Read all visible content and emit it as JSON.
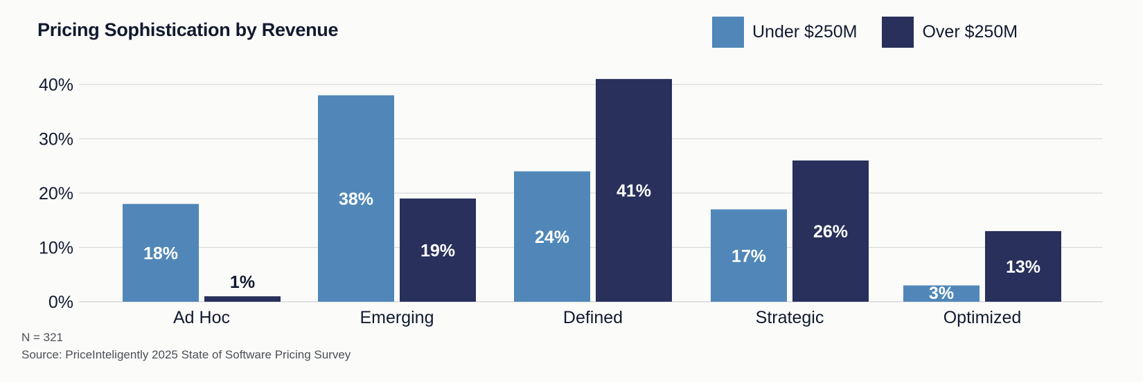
{
  "colors": {
    "under": "#5087b8",
    "over": "#28305b",
    "grid": "#d9dadb",
    "text": "#111a2e",
    "background": "#fbfbfa"
  },
  "chart_data": {
    "type": "bar",
    "title": "Pricing Sophistication by Revenue",
    "categories": [
      "Ad Hoc",
      "Emerging",
      "Defined",
      "Strategic",
      "Optimized"
    ],
    "series": [
      {
        "name": "Under $250M",
        "values": [
          18,
          38,
          24,
          17,
          3
        ],
        "labels": [
          "18%",
          "38%",
          "24%",
          "17%",
          "3%"
        ]
      },
      {
        "name": "Over $250M",
        "values": [
          1,
          19,
          41,
          26,
          13
        ],
        "labels": [
          "1%",
          "19%",
          "41%",
          "26%",
          "13%"
        ]
      }
    ],
    "ylim": [
      0,
      40
    ],
    "yticks": [
      "0%",
      "10%",
      "20%",
      "30%",
      "40%"
    ],
    "ytick_values": [
      0,
      10,
      20,
      30,
      40
    ],
    "grid": true,
    "legend": "top-right"
  },
  "footnotes": {
    "n": "N = 321",
    "source": "Source: PriceInteligently 2025 State of Software Pricing Survey"
  }
}
